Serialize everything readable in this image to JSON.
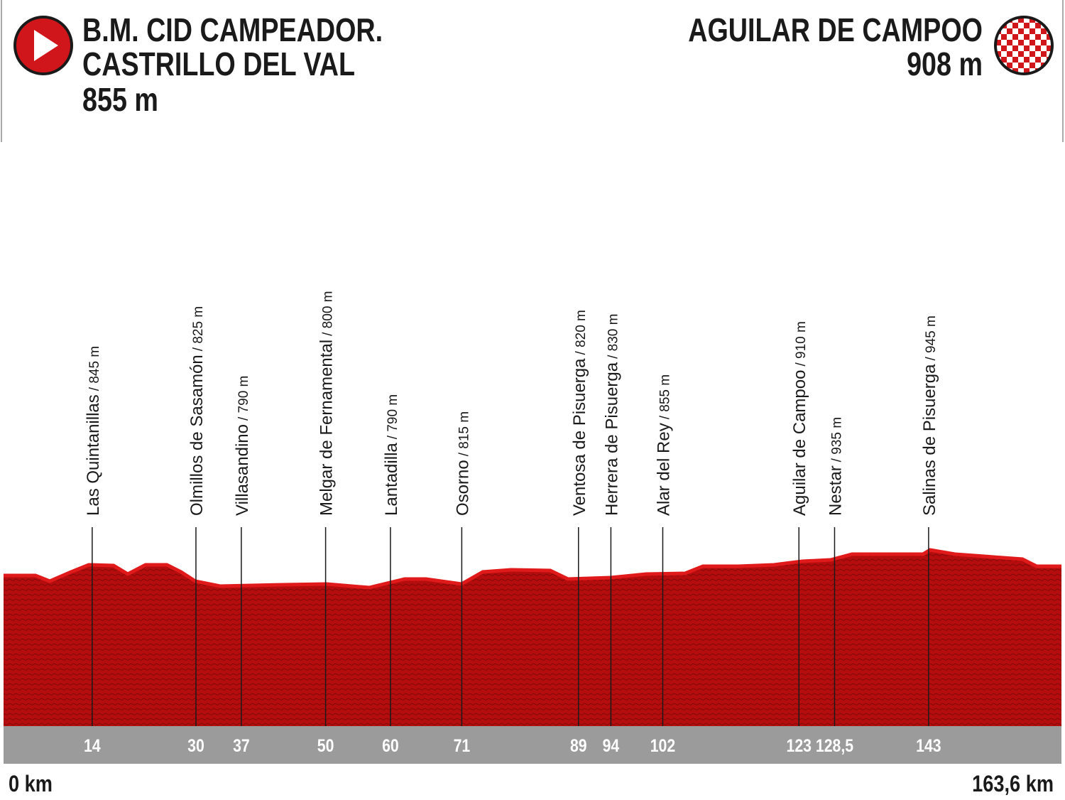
{
  "start": {
    "lines": [
      "B.M. CID CAMPEADOR.",
      "CASTRILLO DEL VAL",
      "855 m"
    ]
  },
  "finish": {
    "lines": [
      "AGUILAR DE CAMPOO",
      "908 m"
    ]
  },
  "chart_data": {
    "type": "profile",
    "xlim": [
      0,
      163.6
    ],
    "xticks": [
      {
        "value": 0,
        "label": "0 km"
      },
      {
        "value": 163.6,
        "label": "163,6 km"
      }
    ],
    "color": "#b50d0d",
    "points": [
      {
        "name": "Las Quintanillas",
        "altitude": "/ 845 m",
        "km": 14
      },
      {
        "name": "Olmillos de Sasamón",
        "altitude": "/ 825 m",
        "km": 30
      },
      {
        "name": "Villasandino",
        "altitude": "/ 790 m",
        "km": 37
      },
      {
        "name": "Melgar de Fernamental",
        "altitude": "/ 800 m",
        "km": 50
      },
      {
        "name": "Lantadilla",
        "altitude": "/ 790 m",
        "km": 60
      },
      {
        "name": "Osorno",
        "altitude": "/ 815 m",
        "km": 71
      },
      {
        "name": "Ventosa de Pisuerga",
        "altitude": "/ 820 m",
        "km": 89
      },
      {
        "name": "Herrera de Pisuerga",
        "altitude": "/ 830 m",
        "km": 94
      },
      {
        "name": "Alar del Rey",
        "altitude": "/ 855 m",
        "km": 102
      },
      {
        "name": "Aguilar de Campoo",
        "altitude": "/ 910 m",
        "km": 123
      },
      {
        "name": "Nestar",
        "altitude": "/ 935 m",
        "km": {
          "value": 128.5,
          "label": "128,5"
        }
      },
      {
        "name": "Salinas de Pisuerga",
        "altitude": "/ 945 m",
        "km": 143
      }
    ]
  }
}
